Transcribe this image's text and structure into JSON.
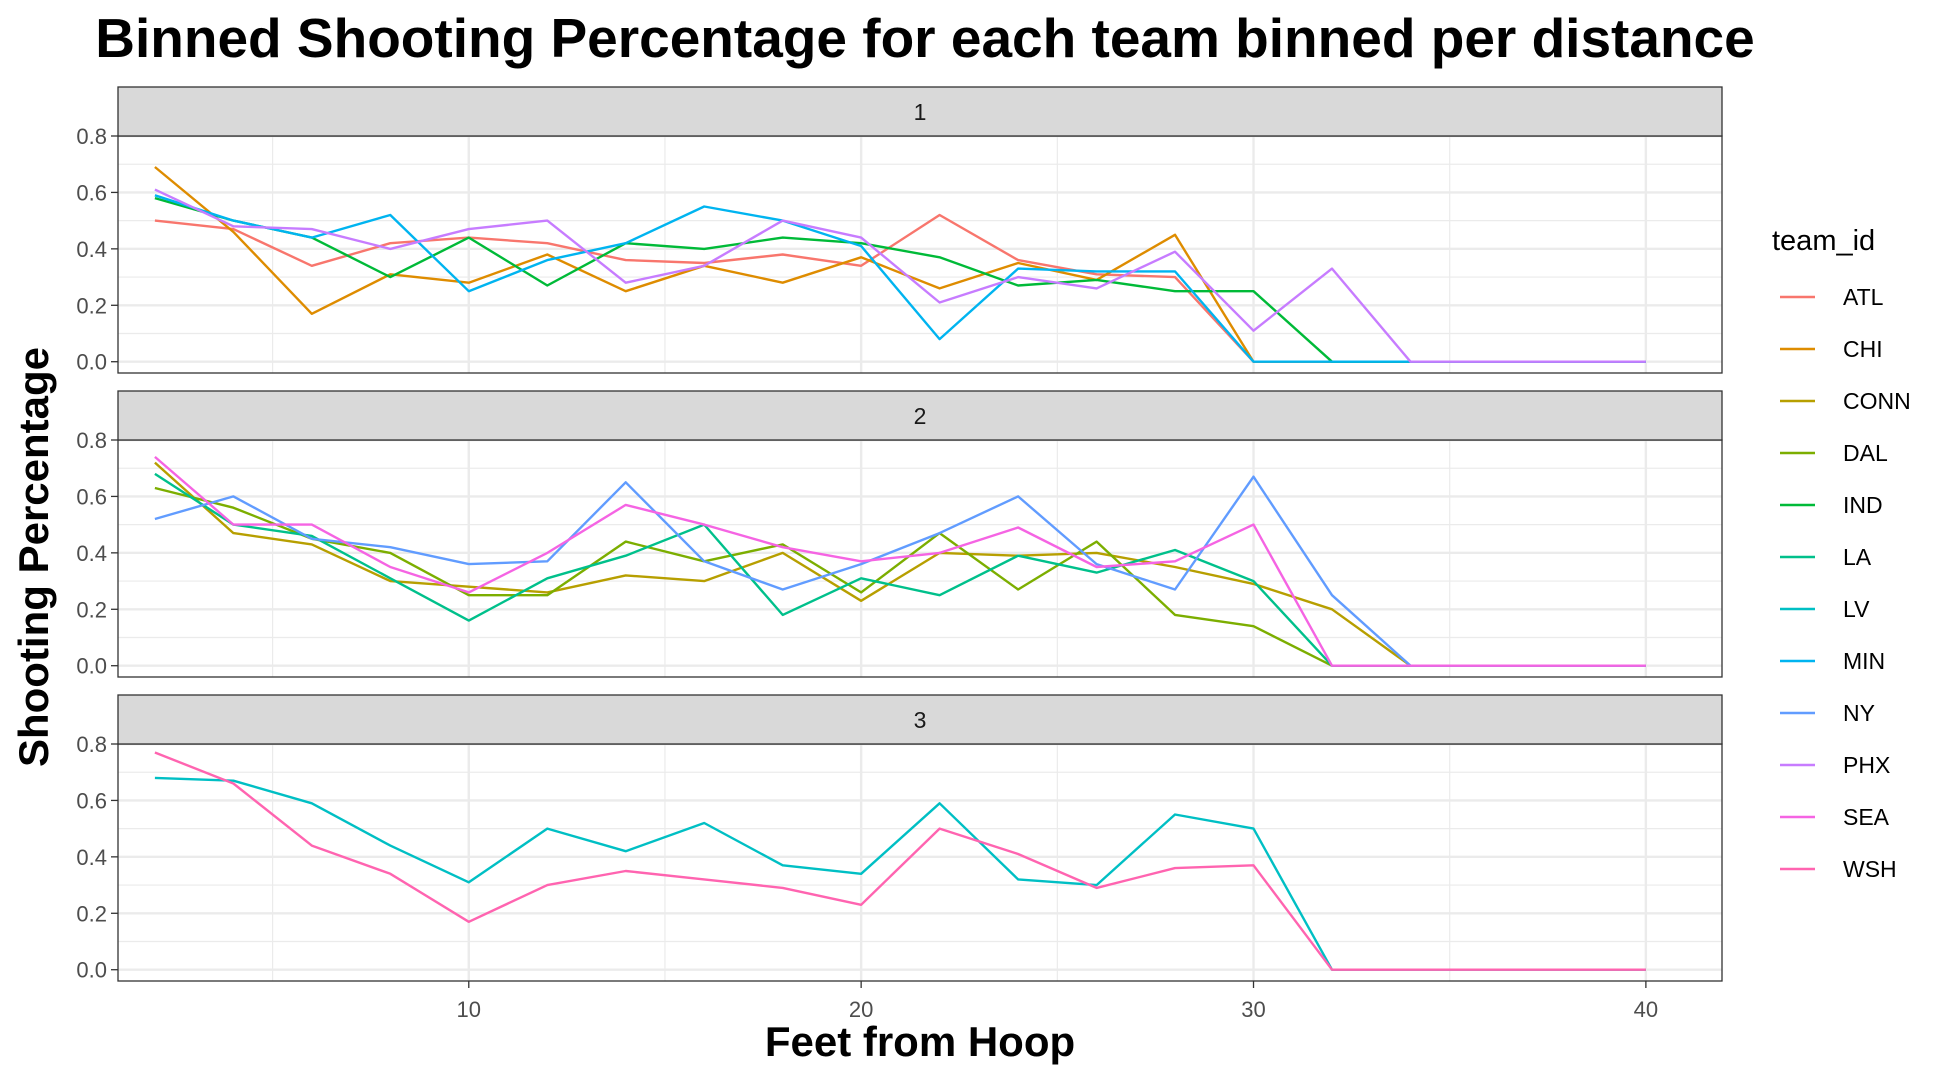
{
  "chart_data": {
    "type": "line",
    "title": "Binned Shooting Percentage for each team binned per distance",
    "xlabel": "Feet from Hoop",
    "ylabel": "Shooting Percentage",
    "xlim": [
      1.06,
      41.94
    ],
    "ylim": [
      -0.04,
      0.8
    ],
    "x_ticks": [
      10,
      20,
      30,
      40
    ],
    "y_ticks": [
      0.0,
      0.2,
      0.4,
      0.6,
      0.8
    ],
    "y_tick_labels": [
      "0.0",
      "0.2",
      "0.4",
      "0.6",
      "0.8"
    ],
    "x_tick_labels": [
      "10",
      "20",
      "30",
      "40"
    ],
    "grid": true,
    "legend": {
      "title": "team_id",
      "position": "right",
      "entries": [
        {
          "name": "ATL",
          "color": "#F8766D"
        },
        {
          "name": "CHI",
          "color": "#DE8C00"
        },
        {
          "name": "CONN",
          "color": "#B79F00"
        },
        {
          "name": "DAL",
          "color": "#7CAE00"
        },
        {
          "name": "IND",
          "color": "#00BA38"
        },
        {
          "name": "LA",
          "color": "#00C08B"
        },
        {
          "name": "LV",
          "color": "#00BFC4"
        },
        {
          "name": "MIN",
          "color": "#00B4F0"
        },
        {
          "name": "NY",
          "color": "#619CFF"
        },
        {
          "name": "PHX",
          "color": "#C77CFF"
        },
        {
          "name": "SEA",
          "color": "#F564E3"
        },
        {
          "name": "WSH",
          "color": "#FF64B0"
        }
      ]
    },
    "x": [
      2,
      4,
      6,
      8,
      10,
      12,
      14,
      16,
      18,
      20,
      22,
      24,
      26,
      28,
      30,
      32,
      34,
      36,
      38,
      40
    ],
    "panels": [
      {
        "label": "1",
        "series": [
          {
            "name": "ATL",
            "color": "#F8766D",
            "values": [
              0.5,
              0.47,
              0.34,
              0.42,
              0.44,
              0.42,
              0.36,
              0.35,
              0.38,
              0.34,
              0.52,
              0.36,
              0.31,
              0.3,
              0.0,
              0.0,
              0.0,
              0.0,
              0.0,
              0.0
            ]
          },
          {
            "name": "CHI",
            "color": "#DE8C00",
            "values": [
              0.69,
              0.46,
              0.17,
              0.31,
              0.28,
              0.38,
              0.25,
              0.34,
              0.28,
              0.37,
              0.26,
              0.35,
              0.29,
              0.45,
              0.0,
              0.0,
              0.0,
              0.0,
              0.0,
              0.0
            ]
          },
          {
            "name": "IND",
            "color": "#00BA38",
            "values": [
              0.58,
              0.5,
              0.44,
              0.3,
              0.44,
              0.27,
              0.42,
              0.4,
              0.44,
              0.42,
              0.37,
              0.27,
              0.29,
              0.25,
              0.25,
              0.0,
              0.0,
              0.0,
              0.0,
              0.0
            ]
          },
          {
            "name": "MIN",
            "color": "#00B4F0",
            "values": [
              0.59,
              0.5,
              0.44,
              0.52,
              0.25,
              0.36,
              0.42,
              0.55,
              0.5,
              0.41,
              0.08,
              0.33,
              0.32,
              0.32,
              0.0,
              0.0,
              0.0,
              0.0,
              0.0,
              0.0
            ]
          },
          {
            "name": "PHX",
            "color": "#C77CFF",
            "values": [
              0.61,
              0.48,
              0.47,
              0.4,
              0.47,
              0.5,
              0.28,
              0.34,
              0.5,
              0.44,
              0.21,
              0.3,
              0.26,
              0.39,
              0.11,
              0.33,
              0.0,
              0.0,
              0.0,
              0.0
            ]
          }
        ]
      },
      {
        "label": "2",
        "series": [
          {
            "name": "CONN",
            "color": "#B79F00",
            "values": [
              0.72,
              0.47,
              0.43,
              0.3,
              0.28,
              0.26,
              0.32,
              0.3,
              0.4,
              0.23,
              0.4,
              0.39,
              0.4,
              0.35,
              0.29,
              0.2,
              0.0,
              0.0,
              0.0,
              0.0
            ]
          },
          {
            "name": "DAL",
            "color": "#7CAE00",
            "values": [
              0.63,
              0.56,
              0.45,
              0.4,
              0.25,
              0.25,
              0.44,
              0.37,
              0.43,
              0.26,
              0.47,
              0.27,
              0.44,
              0.18,
              0.14,
              0.0,
              0.0,
              0.0,
              0.0,
              0.0
            ]
          },
          {
            "name": "LA",
            "color": "#00C08B",
            "values": [
              0.68,
              0.5,
              0.46,
              0.31,
              0.16,
              0.31,
              0.39,
              0.5,
              0.18,
              0.31,
              0.25,
              0.39,
              0.33,
              0.41,
              0.3,
              0.0,
              0.0,
              0.0,
              0.0,
              0.0
            ]
          },
          {
            "name": "NY",
            "color": "#619CFF",
            "values": [
              0.52,
              0.6,
              0.45,
              0.42,
              0.36,
              0.37,
              0.65,
              0.37,
              0.27,
              0.36,
              0.47,
              0.6,
              0.36,
              0.27,
              0.67,
              0.25,
              0.0,
              0.0,
              0.0,
              0.0
            ]
          },
          {
            "name": "SEA",
            "color": "#F564E3",
            "values": [
              0.74,
              0.5,
              0.5,
              0.35,
              0.26,
              0.4,
              0.57,
              0.5,
              0.42,
              0.37,
              0.4,
              0.49,
              0.35,
              0.37,
              0.5,
              0.0,
              0.0,
              0.0,
              0.0,
              0.0
            ]
          }
        ]
      },
      {
        "label": "3",
        "series": [
          {
            "name": "LV",
            "color": "#00BFC4",
            "values": [
              0.68,
              0.67,
              0.59,
              0.44,
              0.31,
              0.5,
              0.42,
              0.52,
              0.37,
              0.34,
              0.59,
              0.32,
              0.3,
              0.55,
              0.5,
              0.0,
              0.0,
              0.0,
              0.0,
              0.0
            ]
          },
          {
            "name": "WSH",
            "color": "#FF64B0",
            "values": [
              0.77,
              0.66,
              0.44,
              0.34,
              0.17,
              0.3,
              0.35,
              0.32,
              0.29,
              0.23,
              0.5,
              0.41,
              0.29,
              0.36,
              0.37,
              0.0,
              0.0,
              0.0,
              0.0,
              0.0
            ]
          }
        ]
      }
    ]
  }
}
